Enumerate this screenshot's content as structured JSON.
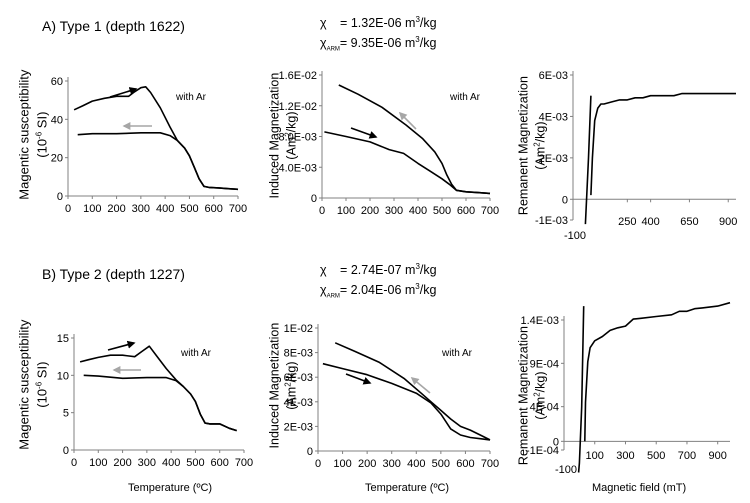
{
  "sections": [
    {
      "title": "A) Type 1 (depth 1622)",
      "chi_label": "χ",
      "chi_value": "= 1.32E-06  m",
      "chi_unit_sup": "3",
      "chi_unit_tail": "/kg",
      "chiarm_label": "χ",
      "chiarm_sub": "ARM",
      "chiarm_value": "= 9.35E-06  m",
      "chiarm_unit_sup": "3",
      "chiarm_unit_tail": "/kg"
    },
    {
      "title": "B) Type 2 (depth 1227)",
      "chi_label": "χ",
      "chi_value": "= 2.74E-07  m",
      "chi_unit_sup": "3",
      "chi_unit_tail": "/kg",
      "chiarm_label": "χ",
      "chiarm_sub": "ARM",
      "chiarm_value": "= 2.04E-06  m",
      "chiarm_unit_sup": "3",
      "chiarm_unit_tail": "/kg"
    }
  ],
  "labels": {
    "susc_y1": "Magentic susceptibility",
    "susc_y2_pre": "(10",
    "susc_y2_sup": "-6",
    "susc_y2_post": "  SI)",
    "induced_y1": "Induced Magnetization",
    "induced_y2_pre": "(Am",
    "induced_y2_sup": "2",
    "induced_y2_post": "/kg)",
    "remanent_y1": "Remanent Magnetization",
    "remanent_y2_pre": "(Am",
    "remanent_y2_sup": "2",
    "remanent_y2_post": "/kg)",
    "temperature_x": "Temperature (ºC)",
    "field_x": "Magnetic field (mT)"
  },
  "colors": {
    "line": "#000000",
    "heating_arrow": "#000000",
    "cooling_arrow": "#a6a6a6",
    "axis": "#808080"
  },
  "chart_data": [
    {
      "id": "A-susceptibility",
      "type": "line",
      "title": "",
      "xlabel": "",
      "ylabel": "Magentic susceptibility (10^-6 SI)",
      "xlim": [
        0,
        700
      ],
      "ylim": [
        0,
        60
      ],
      "xticks": [
        0,
        100,
        200,
        300,
        400,
        500,
        600,
        700
      ],
      "yticks": [
        0,
        20,
        40,
        60
      ],
      "xtick_labels": [
        "0",
        "100",
        "200",
        "300",
        "400",
        "500",
        "600",
        "700"
      ],
      "ytick_labels": [
        "0",
        "20",
        "40",
        "60"
      ],
      "annotation": "with Ar",
      "series": [
        {
          "name": "heating",
          "x": [
            25,
            60,
            100,
            150,
            200,
            250,
            270,
            300,
            320,
            340,
            380,
            420,
            450,
            480,
            500,
            520,
            540,
            560,
            580,
            620,
            660,
            700
          ],
          "y": [
            45,
            47,
            49.5,
            51,
            52,
            52,
            54,
            56.5,
            57,
            54,
            46,
            36,
            29,
            25,
            21,
            15,
            9,
            5,
            4.5,
            4.2,
            3.8,
            3.5
          ]
        },
        {
          "name": "cooling",
          "x": [
            40,
            100,
            200,
            300,
            380,
            420,
            450,
            480,
            500,
            520,
            540,
            560,
            580,
            620,
            660,
            700
          ],
          "y": [
            32,
            32.5,
            32.5,
            33,
            33,
            31.5,
            29,
            25,
            21,
            15,
            9,
            5,
            4.5,
            4.2,
            3.8,
            3.5
          ]
        }
      ]
    },
    {
      "id": "A-induced",
      "type": "line",
      "title": "",
      "xlabel": "",
      "ylabel": "Induced Magnetization (Am^2/kg)",
      "xlim": [
        0,
        700
      ],
      "ylim": [
        0,
        0.016
      ],
      "xticks": [
        0,
        100,
        200,
        300,
        400,
        500,
        600,
        700
      ],
      "yticks": [
        0,
        0.004,
        0.008,
        0.012,
        0.016
      ],
      "xtick_labels": [
        "0",
        "100",
        "200",
        "300",
        "400",
        "500",
        "600",
        "700"
      ],
      "ytick_labels": [
        "0",
        "4.0E-03",
        "8.0E-03",
        "1.2E-02",
        "1.6E-02"
      ],
      "annotation": "with Ar",
      "series": [
        {
          "name": "heating",
          "x": [
            10,
            100,
            200,
            280,
            340,
            400,
            450,
            500,
            530,
            560,
            600,
            650,
            700
          ],
          "y": [
            0.0086,
            0.008,
            0.0073,
            0.0063,
            0.0058,
            0.0045,
            0.0035,
            0.0025,
            0.0018,
            0.001,
            0.0008,
            0.0007,
            0.0006
          ]
        },
        {
          "name": "cooling",
          "x": [
            70,
            150,
            250,
            350,
            420,
            470,
            500,
            520,
            540,
            560,
            600,
            650,
            700
          ],
          "y": [
            0.0147,
            0.0135,
            0.0118,
            0.0095,
            0.0077,
            0.006,
            0.0045,
            0.003,
            0.0018,
            0.001,
            0.0008,
            0.0007,
            0.0006
          ]
        }
      ]
    },
    {
      "id": "A-remanent",
      "type": "line",
      "title": "",
      "xlabel": "",
      "ylabel": "Remanent Magnetization (Am^2/kg)",
      "xlim": [
        -100,
        950
      ],
      "ylim": [
        -0.001,
        0.006
      ],
      "xticks": [
        -100,
        250,
        400,
        650,
        900
      ],
      "yticks": [
        -0.001,
        0,
        0.002,
        0.004,
        0.006
      ],
      "xtick_labels": [
        "-100",
        "250",
        "400",
        "650",
        "900"
      ],
      "ytick_labels": [
        "-1E-03",
        "0",
        "2E-03",
        "4E-03",
        "6E-03"
      ],
      "series": [
        {
          "name": "backfield",
          "x": [
            -20,
            0,
            15
          ],
          "y": [
            -0.0012,
            0.002,
            0.005
          ]
        },
        {
          "name": "IRM",
          "x": [
            15,
            25,
            40,
            60,
            80,
            100,
            150,
            200,
            250,
            300,
            350,
            400,
            450,
            500,
            550,
            600,
            650,
            700,
            750,
            800,
            850,
            900,
            950
          ],
          "y": [
            0.0002,
            0.002,
            0.0038,
            0.0044,
            0.0046,
            0.0046,
            0.0047,
            0.0048,
            0.0048,
            0.0049,
            0.0049,
            0.005,
            0.005,
            0.005,
            0.005,
            0.0051,
            0.0051,
            0.0051,
            0.0051,
            0.0051,
            0.0051,
            0.0051,
            0.0051
          ]
        }
      ]
    },
    {
      "id": "B-susceptibility",
      "type": "line",
      "title": "",
      "xlabel": "Temperature (ºC)",
      "ylabel": "Magentic susceptibility (10^-6 SI)",
      "xlim": [
        0,
        700
      ],
      "ylim": [
        0,
        15
      ],
      "xticks": [
        0,
        100,
        200,
        300,
        400,
        500,
        600,
        700
      ],
      "yticks": [
        0,
        5,
        10,
        15
      ],
      "xtick_labels": [
        "0",
        "100",
        "200",
        "300",
        "400",
        "500",
        "600",
        "700"
      ],
      "ytick_labels": [
        "0",
        "5",
        "10",
        "15"
      ],
      "annotation": "with Ar",
      "series": [
        {
          "name": "heating",
          "x": [
            25,
            60,
            100,
            150,
            200,
            250,
            280,
            310,
            340,
            380,
            420,
            450,
            480,
            500,
            520,
            540,
            560,
            600,
            640,
            670
          ],
          "y": [
            11.8,
            12.1,
            12.4,
            12.7,
            12.7,
            12.5,
            13.2,
            13.9,
            12.6,
            10.9,
            9.4,
            8.5,
            7.5,
            6.5,
            4.8,
            3.6,
            3.5,
            3.5,
            2.9,
            2.6
          ]
        },
        {
          "name": "cooling",
          "x": [
            40,
            100,
            200,
            300,
            380,
            420,
            450,
            480,
            500,
            520,
            540,
            560,
            600,
            640,
            670
          ],
          "y": [
            10,
            9.9,
            9.6,
            9.7,
            9.7,
            9.3,
            8.5,
            7.5,
            6.5,
            4.8,
            3.6,
            3.5,
            3.5,
            2.9,
            2.6
          ]
        }
      ]
    },
    {
      "id": "B-induced",
      "type": "line",
      "title": "",
      "xlabel": "Temperature (ºC)",
      "ylabel": "Induced Magnetization (Am^2/kg)",
      "xlim": [
        0,
        700
      ],
      "ylim": [
        0,
        0.01
      ],
      "xticks": [
        0,
        100,
        200,
        300,
        400,
        500,
        600,
        700
      ],
      "yticks": [
        0,
        0.002,
        0.004,
        0.006,
        0.008,
        0.01
      ],
      "xtick_labels": [
        "0",
        "100",
        "200",
        "300",
        "400",
        "500",
        "600",
        "700"
      ],
      "ytick_labels": [
        "0",
        "2E-03",
        "4E-03",
        "6E-03",
        "8E-03",
        "1E-02"
      ],
      "annotation": "with Ar",
      "series": [
        {
          "name": "heating",
          "x": [
            20,
            100,
            200,
            300,
            400,
            460,
            500,
            540,
            580,
            620,
            660,
            700
          ],
          "y": [
            0.0071,
            0.0067,
            0.0062,
            0.0055,
            0.0047,
            0.0039,
            0.003,
            0.0018,
            0.0013,
            0.0011,
            0.001,
            0.0009
          ]
        },
        {
          "name": "cooling",
          "x": [
            70,
            150,
            250,
            350,
            420,
            460,
            500,
            540,
            580,
            620,
            660,
            700
          ],
          "y": [
            0.0088,
            0.0081,
            0.0072,
            0.0059,
            0.0047,
            0.004,
            0.0033,
            0.0026,
            0.002,
            0.0017,
            0.0013,
            0.0009
          ]
        }
      ]
    },
    {
      "id": "B-remanent",
      "type": "line",
      "title": "",
      "xlabel": "Magnetic field (mT)",
      "ylabel": "Remanent Magnetization (Am^2/kg)",
      "xlim": [
        -100,
        980
      ],
      "ylim": [
        -0.0001,
        0.0014
      ],
      "xticks": [
        -100,
        100,
        300,
        500,
        700,
        900
      ],
      "yticks": [
        -0.0001,
        0,
        0.0004,
        0.0009,
        0.0014
      ],
      "xtick_labels": [
        "-100",
        "100",
        "300",
        "500",
        "700",
        "900"
      ],
      "ytick_labels": [
        "-1E-04",
        "0",
        "4E-04",
        "9E-04",
        "1.4E-03"
      ],
      "series": [
        {
          "name": "backfield",
          "x": [
            -5,
            0,
            15,
            28
          ],
          "y": [
            -0.00036,
            -0.00025,
            0.0004,
            0.00156
          ]
        },
        {
          "name": "IRM",
          "x": [
            35,
            40,
            55,
            70,
            100,
            150,
            200,
            250,
            300,
            350,
            400,
            500,
            600,
            650,
            700,
            750,
            800,
            900,
            980
          ],
          "y": [
            0.0,
            0.00045,
            0.00092,
            0.00108,
            0.00116,
            0.00121,
            0.00128,
            0.00131,
            0.00133,
            0.00141,
            0.00142,
            0.00144,
            0.00146,
            0.0015,
            0.0015,
            0.00153,
            0.00154,
            0.00156,
            0.0016
          ]
        }
      ]
    }
  ]
}
